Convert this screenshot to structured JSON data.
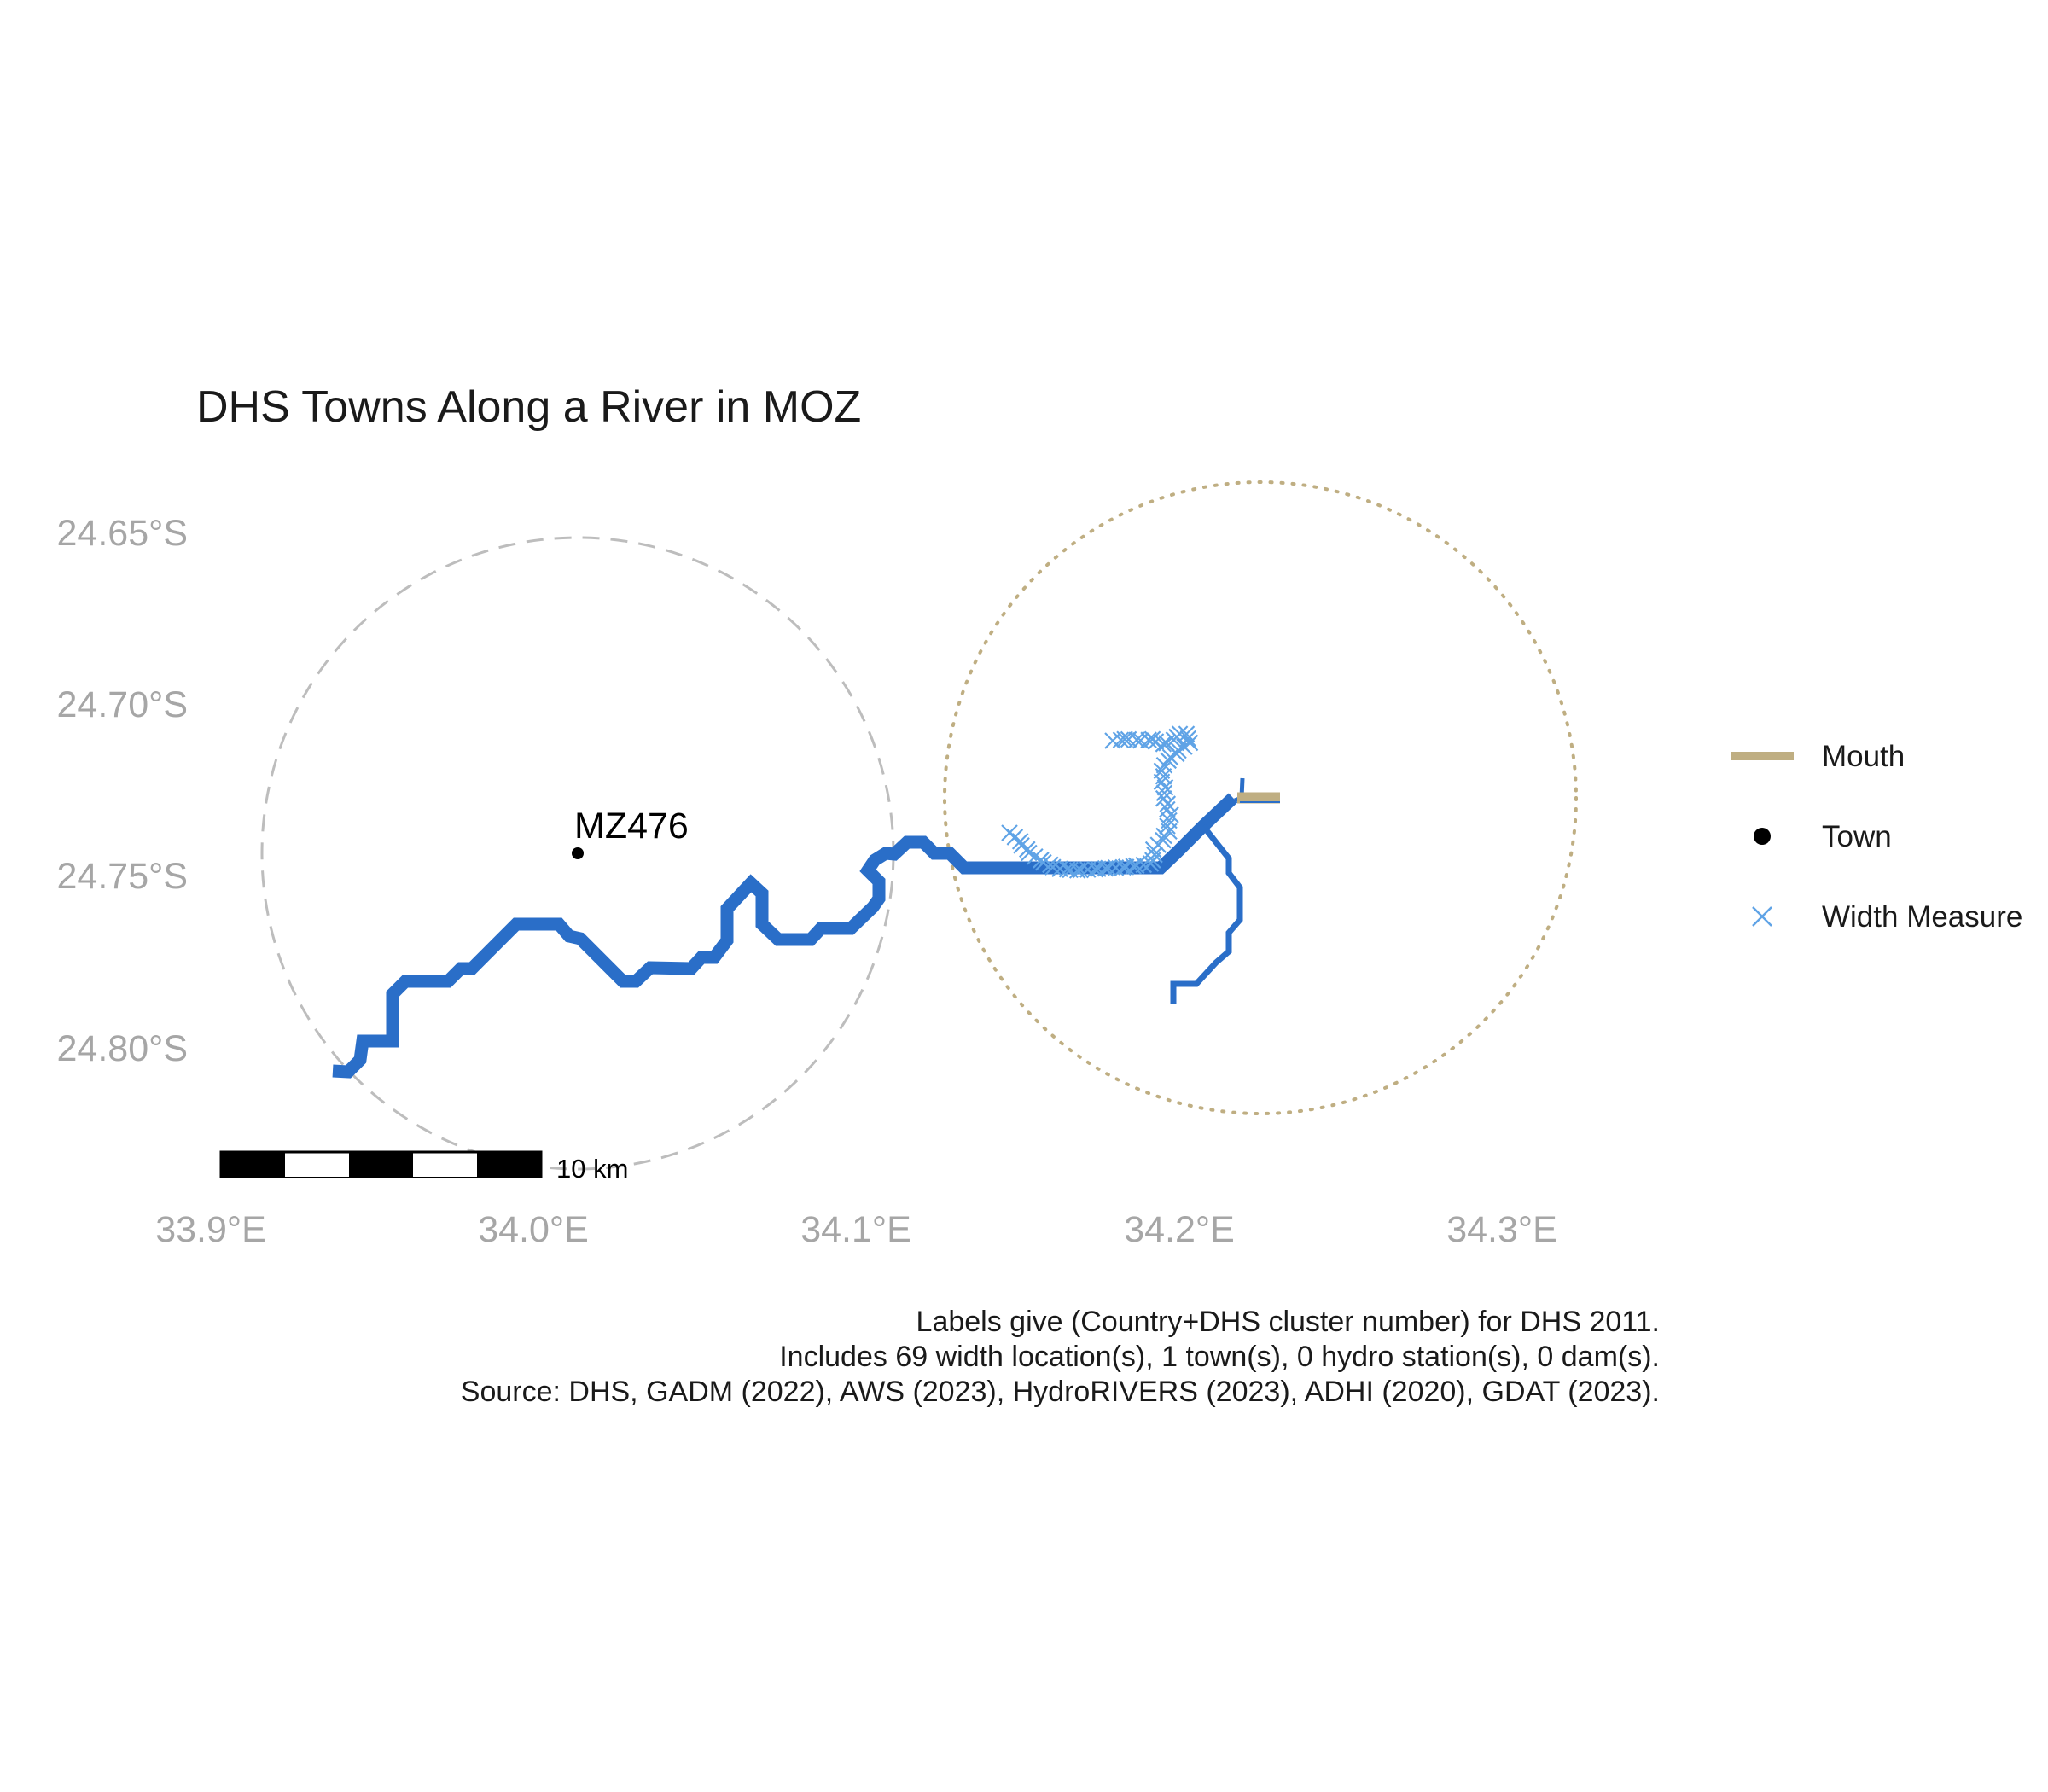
{
  "title": "DHS Towns Along a River in MOZ",
  "axes": {
    "x_ticks": [
      "33.9°E",
      "34.0°E",
      "34.1°E",
      "34.2°E",
      "34.3°E"
    ],
    "y_ticks": [
      "24.65°S",
      "24.70°S",
      "24.75°S",
      "24.80°S"
    ]
  },
  "towns": [
    {
      "label": "MZ476",
      "lon": 34.014,
      "lat": -24.744
    }
  ],
  "buffers": [
    {
      "name": "town-buffer",
      "style": "dashed",
      "color": "#bdbdbd"
    },
    {
      "name": "mouth-buffer",
      "style": "dotted",
      "color": "#bfae82"
    }
  ],
  "legend": {
    "items": [
      {
        "label": "Mouth",
        "symbol": "line",
        "color": "#bfae82"
      },
      {
        "label": "Town",
        "symbol": "point",
        "color": "#000000"
      },
      {
        "label": "Width Measure",
        "symbol": "cross",
        "color": "#5fa3e6"
      }
    ]
  },
  "scale_bar": {
    "label": "10 km"
  },
  "caption": [
    "Labels give (Country+DHS cluster number) for DHS 2011.",
    "Includes 69 width location(s), 1 town(s), 0 hydro station(s), 0 dam(s).",
    "Source: DHS, GADM (2022), AWS (2023), HydroRIVERS (2023), ADHI (2020), GDAT (2023)."
  ],
  "colors": {
    "river": "#2a6ec8",
    "width_measure": "#5fa3e6",
    "mouth": "#bfae82",
    "town": "#000000",
    "axis_text": "#a6a6a6"
  }
}
